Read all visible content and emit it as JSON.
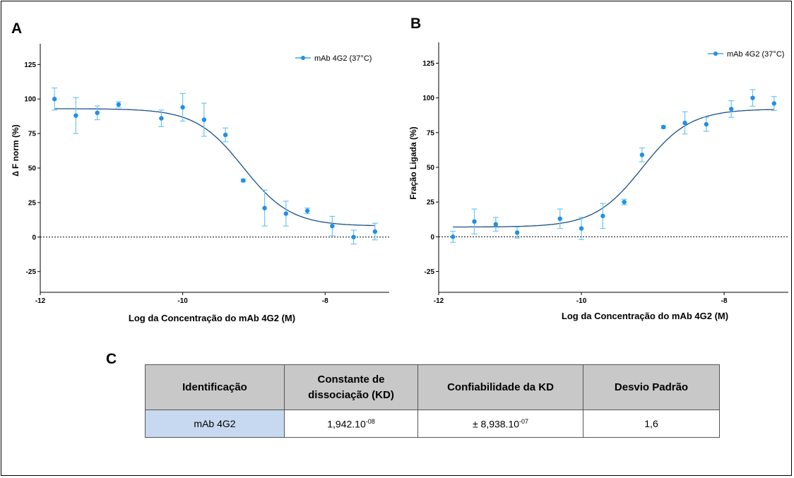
{
  "panels": {
    "a": "A",
    "b": "B",
    "c": "C"
  },
  "chart_data": [
    {
      "type": "scatter",
      "panel": "A",
      "xlabel": "Log da Concentração do mAb 4G2  (M)",
      "ylabel": "∆ F norm (%)",
      "xlim": [
        -12,
        -7.1
      ],
      "ylim": [
        -40,
        140
      ],
      "xticks": [
        -12,
        -10,
        -8
      ],
      "yticks": [
        -25,
        0,
        25,
        50,
        75,
        100,
        125
      ],
      "legend": {
        "label": "mAb 4G2 (37°C)",
        "position": "top-right"
      },
      "reference_line_y": 0,
      "color": "#1f8fe8",
      "errorbar_color": "#6ec6ee",
      "fit_color": "#1a4f8a",
      "series": [
        {
          "name": "mAb 4G2 (37°C)",
          "x": [
            -11.8,
            -11.5,
            -11.2,
            -10.9,
            -10.3,
            -10.0,
            -9.7,
            -9.4,
            -9.15,
            -8.85,
            -8.55,
            -8.25,
            -7.9,
            -7.6,
            -7.3
          ],
          "y": [
            100,
            88,
            90,
            96,
            86,
            94,
            85,
            74,
            41,
            21,
            17,
            19,
            8,
            0,
            4
          ],
          "err": [
            8,
            13,
            5,
            2,
            6,
            10,
            12,
            5,
            1,
            13,
            9,
            2,
            7,
            5,
            6
          ]
        }
      ],
      "fit": {
        "bottom": 8,
        "top": 93,
        "log_ec50": -9.15,
        "hill": -1.3
      }
    },
    {
      "type": "scatter",
      "panel": "B",
      "xlabel": "Log da Concentração do mAb 4G2  (M)",
      "ylabel": "Fração Ligada (%)",
      "xlim": [
        -12,
        -7.1
      ],
      "ylim": [
        -40,
        140
      ],
      "xticks": [
        -12,
        -10,
        -8
      ],
      "yticks": [
        -25,
        0,
        25,
        50,
        75,
        100,
        125
      ],
      "legend": {
        "label": "mAb 4G2 (37°C)",
        "position": "top-right"
      },
      "reference_line_y": 0,
      "color": "#1f8fe8",
      "errorbar_color": "#6ec6ee",
      "fit_color": "#1a4f8a",
      "series": [
        {
          "name": "mAb 4G2 (37°C)",
          "x": [
            -11.8,
            -11.5,
            -11.2,
            -10.9,
            -10.3,
            -10.0,
            -9.7,
            -9.4,
            -9.15,
            -8.85,
            -8.55,
            -8.25,
            -7.9,
            -7.6,
            -7.3
          ],
          "y": [
            0,
            11,
            9,
            3,
            13,
            6,
            15,
            25,
            59,
            79,
            82,
            81,
            92,
            100,
            96
          ],
          "err": [
            4,
            9,
            5,
            4,
            7,
            8,
            9,
            2,
            5,
            1,
            8,
            5,
            6,
            6,
            5
          ]
        }
      ],
      "fit": {
        "bottom": 7,
        "top": 92,
        "log_ec50": -9.15,
        "hill": 1.3
      }
    }
  ],
  "table": {
    "headers": [
      "Identificação",
      "Constante de dissociação (KD)",
      "Confiabilidade da KD",
      "Desvio Padrão"
    ],
    "row": {
      "ident": "mAb 4G2",
      "kd_base": "1,942.10",
      "kd_exp": "-08",
      "conf_base": "± 8,938.10",
      "conf_exp": "-07",
      "sd": "1,6"
    }
  }
}
